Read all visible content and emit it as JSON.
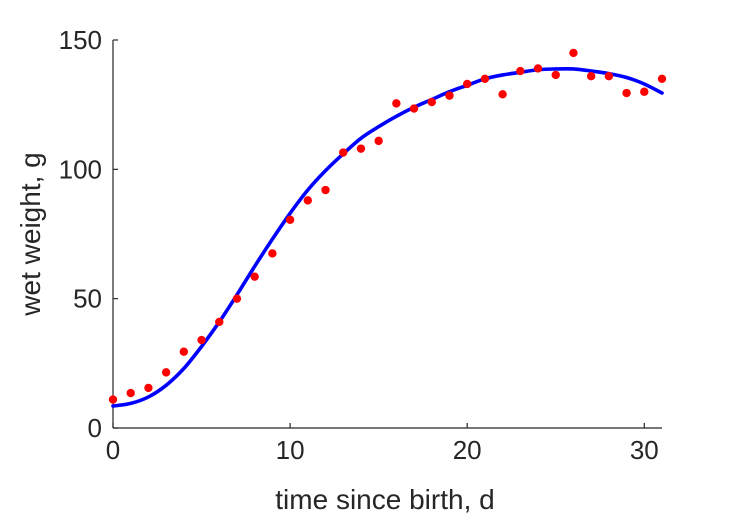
{
  "chart_data": {
    "type": "scatter",
    "title": "",
    "xlabel": "time since birth, d",
    "ylabel": "wet weight, g",
    "xlim": [
      0,
      31
    ],
    "ylim": [
      0,
      150
    ],
    "xticks": [
      "0",
      "10",
      "20",
      "30"
    ],
    "yticks": [
      "0",
      "50",
      "100",
      "150"
    ],
    "grid": false,
    "colors": {
      "points": "#ff0000",
      "curve": "#0000ff",
      "axes": "#262626"
    },
    "series": [
      {
        "type": "scatter",
        "x": [
          0,
          1,
          2,
          3,
          4,
          5,
          6,
          7,
          8,
          9,
          10,
          11,
          12,
          13,
          14,
          15,
          16,
          17,
          18,
          19,
          20,
          21,
          22,
          23,
          24,
          25,
          26,
          27,
          28,
          29,
          30,
          31
        ],
        "y": [
          11,
          13.5,
          15.5,
          21.5,
          29.5,
          34,
          41,
          50,
          58.5,
          67.5,
          80.5,
          88,
          92,
          106.5,
          108,
          111,
          125.5,
          123.5,
          126,
          128.5,
          133,
          135,
          129,
          138,
          139,
          136.5,
          145,
          136,
          136,
          129.5,
          130,
          135
        ]
      },
      {
        "type": "line",
        "x": [
          0,
          1,
          2,
          3,
          4,
          5,
          6,
          7,
          8,
          9,
          10,
          11,
          12,
          13,
          14,
          15,
          16,
          17,
          18,
          19,
          20,
          21,
          22,
          23,
          24,
          25,
          26,
          27,
          28,
          29,
          30,
          31
        ],
        "y": [
          8.5,
          9.5,
          12,
          16.5,
          23,
          31.5,
          41,
          51.5,
          62.5,
          73,
          83,
          92,
          99.5,
          106,
          112,
          116.5,
          120.5,
          124,
          127,
          130,
          132.5,
          135,
          136.5,
          137.5,
          138.5,
          138.8,
          138.8,
          138,
          137,
          135.5,
          133,
          129.5
        ]
      }
    ]
  }
}
